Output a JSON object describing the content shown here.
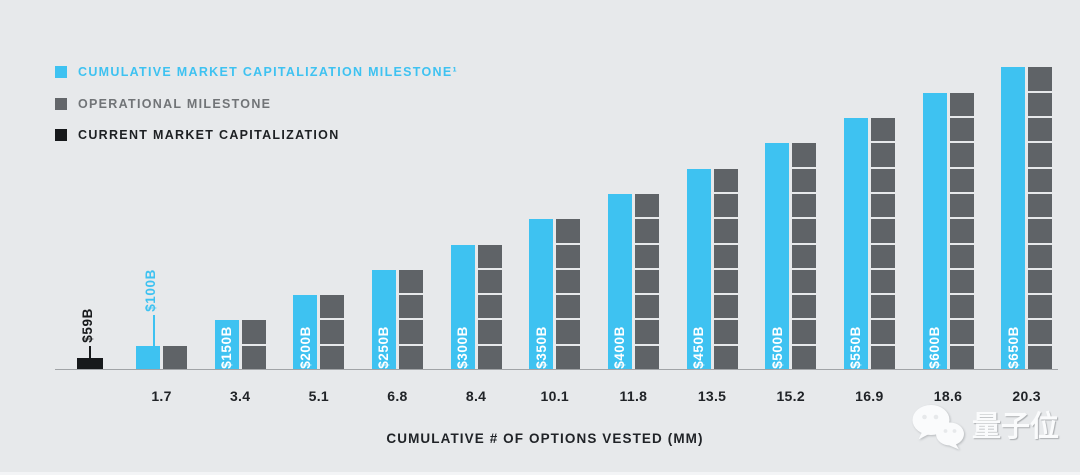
{
  "legend": {
    "items": [
      {
        "label": "CUMULATIVE MARKET CAPITALIZATION MILESTONE¹",
        "color": "#3EC2F1"
      },
      {
        "label": "OPERATIONAL MILESTONE",
        "color": "#63666A"
      },
      {
        "label": "CURRENT MARKET CAPITALIZATION",
        "color": "#17191B"
      }
    ]
  },
  "chart_data": {
    "type": "bar",
    "title": "",
    "xlabel": "CUMULATIVE # OF OPTIONS VESTED (MM)",
    "ylabel": "",
    "categories": [
      "1.7",
      "3.4",
      "5.1",
      "6.8",
      "8.4",
      "10.1",
      "11.8",
      "13.5",
      "15.2",
      "16.9",
      "18.6",
      "20.3"
    ],
    "series": [
      {
        "name": "CUMULATIVE MARKET CAPITALIZATION MILESTONE",
        "labels": [
          "$100B",
          "$150B",
          "$200B",
          "$250B",
          "$300B",
          "$350B",
          "$400B",
          "$450B",
          "$500B",
          "$550B",
          "$600B",
          "$650B"
        ],
        "values_billions": [
          100,
          150,
          200,
          250,
          300,
          350,
          400,
          450,
          500,
          550,
          600,
          650
        ],
        "color": "#3EC2F1",
        "label_position": "inside-rotated, first label shown above bar with callout line"
      },
      {
        "name": "OPERATIONAL MILESTONE",
        "segment_counts": [
          1,
          2,
          3,
          4,
          5,
          6,
          7,
          8,
          9,
          10,
          11,
          12
        ],
        "color": "#5F6367",
        "note": "segmented stacked blocks, one block per operational milestone"
      }
    ],
    "current_market_cap": {
      "label": "$59B",
      "value_billions": 59,
      "color": "#17191B"
    },
    "layout": {
      "grid": false,
      "legend_position": "top-left",
      "bar_pairing": "cyan milestone bar beside segmented gray bar"
    }
  },
  "watermark": {
    "brand": "量子位",
    "icon": "wechat-icon"
  }
}
